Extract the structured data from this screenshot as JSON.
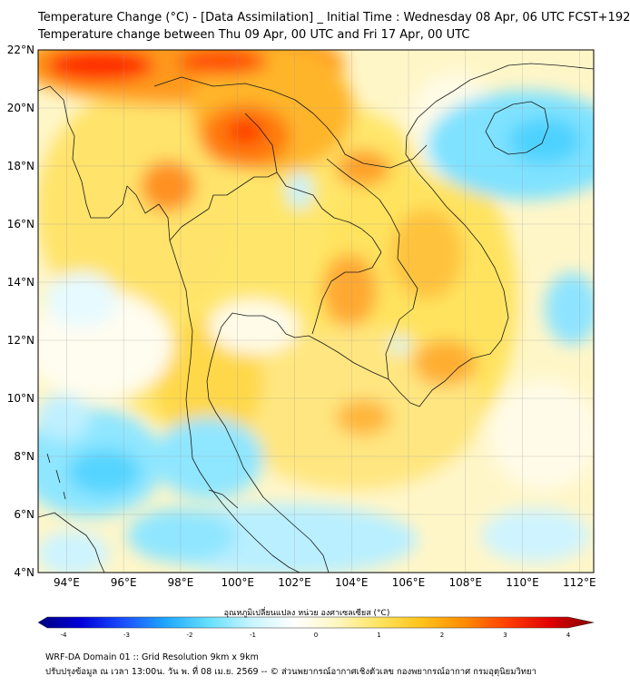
{
  "header": {
    "title_line1": "Temperature Change (°C) - [Data Assimilation] _ Initial Time : Wednesday 08 Apr, 06 UTC FCST+192",
    "title_line2": "Temperature change between Thu 09 Apr, 00 UTC and Fri 17 Apr, 00 UTC"
  },
  "map": {
    "lat_range": [
      4,
      22
    ],
    "lon_range": [
      93,
      112.5
    ],
    "lat_ticks": [
      "4°N",
      "6°N",
      "8°N",
      "10°N",
      "12°N",
      "14°N",
      "16°N",
      "18°N",
      "20°N",
      "22°N"
    ],
    "lon_ticks": [
      "94°E",
      "96°E",
      "98°E",
      "100°E",
      "102°E",
      "104°E",
      "106°E",
      "108°E",
      "110°E",
      "112°E"
    ]
  },
  "colorbar": {
    "label": "อุณหภูมิเปลี่ยนแปลง หน่วย องศาเซลเซียส (°C)",
    "ticks": [
      "-4",
      "-3",
      "-2",
      "-1",
      "0",
      "1",
      "2",
      "3",
      "4"
    ],
    "min": -4,
    "max": 4,
    "colors": [
      "#00007f",
      "#0000d9",
      "#1a4fff",
      "#1fa8ff",
      "#66e0ff",
      "#c8f5ff",
      "#ffffff",
      "#fff7c0",
      "#ffe45c",
      "#ffc21a",
      "#ff8a00",
      "#ff3c00",
      "#e00000",
      "#7f0000"
    ]
  },
  "footer": {
    "line1": "WRF-DA Domain 01 :: Grid Resolution 9km x 9km",
    "line2": "ปรับปรุงข้อมูล ณ เวลา 13:00น. วัน พ. ที่ 08 เม.ย. 2569 -- © ส่วนพยากรณ์อากาศเชิงตัวเลข กองพยากรณ์อากาศ กรมอุตุนิยมวิทยา"
  }
}
